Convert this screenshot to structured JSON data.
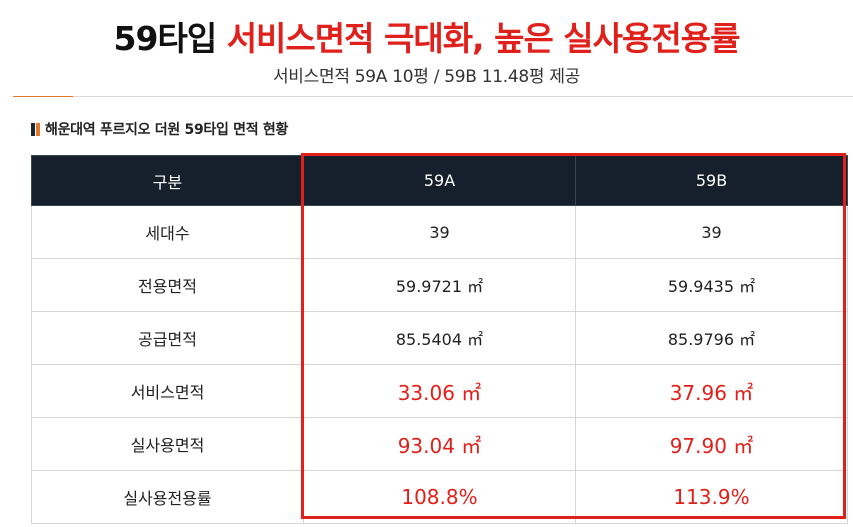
{
  "header": {
    "title_lead": "59타입",
    "title_accent": "서비스면적 극대화, 높은 실사용전용률",
    "subtitle": "서비스면적 59A 10평 / 59B 11.48평 제공"
  },
  "section": {
    "title": "해운대역 푸르지오 더원 59타입 면적 현황"
  },
  "table": {
    "headers": [
      "구분",
      "59A",
      "59B"
    ],
    "rows": [
      {
        "label": "세대수",
        "a": "39",
        "b": "39"
      },
      {
        "label": "전용면적",
        "a": "59.9721 ㎡",
        "b": "59.9435 ㎡"
      },
      {
        "label": "공급면적",
        "a": "85.5404 ㎡",
        "b": "85.9796 ㎡"
      },
      {
        "label": "서비스면적",
        "a": "33.06 ㎡",
        "b": "37.96 ㎡"
      },
      {
        "label": "실사용면적",
        "a": "93.04 ㎡",
        "b": "97.90 ㎡"
      },
      {
        "label": "실사용전용률",
        "a": "108.8%",
        "b": "113.9%"
      }
    ]
  },
  "colors": {
    "accent_red": "#e0201b",
    "header_navy": "#16202c",
    "accent_orange": "#e07a30"
  }
}
